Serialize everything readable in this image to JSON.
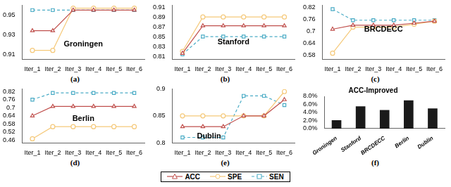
{
  "chart_data": [
    {
      "type": "line",
      "title": "Groningen",
      "annotation": "(a)",
      "legend": "bottom",
      "categories": [
        "Iter_1",
        "Iter_2",
        "Iter_3",
        "Iter_4",
        "Iter_5",
        "Iter_6"
      ],
      "ylim": [
        0.905,
        0.96
      ],
      "yticks": [
        0.91,
        0.93,
        0.95
      ],
      "grid": false,
      "series": [
        {
          "name": "ACC",
          "color": "#c0504d",
          "marker": "triangle",
          "line_style": "solid",
          "values": [
            0.934,
            0.934,
            0.955,
            0.955,
            0.955,
            0.955
          ]
        },
        {
          "name": "SPE",
          "color": "#f5c97a",
          "marker": "circle",
          "line_style": "solid",
          "values": [
            0.914,
            0.914,
            0.957,
            0.957,
            0.957,
            0.957
          ]
        },
        {
          "name": "SEN",
          "color": "#4bacc6",
          "marker": "square",
          "line_style": "dashed",
          "values": [
            0.955,
            0.955,
            0.955,
            0.955,
            0.955,
            0.955
          ]
        }
      ]
    },
    {
      "type": "line",
      "title": "Stanford",
      "annotation": "(b)",
      "categories": [
        "Iter_1",
        "Iter_2",
        "Iter_3",
        "Iter_4",
        "Iter_5",
        "Iter_6"
      ],
      "ylim": [
        0.805,
        0.915
      ],
      "yticks": [
        0.81,
        0.83,
        0.85,
        0.87,
        0.89,
        0.91
      ],
      "grid": false,
      "series": [
        {
          "name": "ACC",
          "color": "#c0504d",
          "marker": "triangle",
          "line_style": "solid",
          "values": [
            0.817,
            0.873,
            0.873,
            0.873,
            0.873,
            0.873
          ]
        },
        {
          "name": "SPE",
          "color": "#f5c97a",
          "marker": "circle",
          "line_style": "solid",
          "values": [
            0.821,
            0.891,
            0.891,
            0.891,
            0.891,
            0.891
          ]
        },
        {
          "name": "SEN",
          "color": "#4bacc6",
          "marker": "square",
          "line_style": "dashed",
          "values": [
            0.815,
            0.851,
            0.851,
            0.851,
            0.851,
            0.851
          ]
        }
      ]
    },
    {
      "type": "line",
      "title": "BRCDECC",
      "annotation": "(c)",
      "categories": [
        "Iter_1",
        "Iter_2",
        "Iter_3",
        "Iter_4",
        "Iter_5",
        "Iter_6"
      ],
      "ylim": [
        0.56,
        0.83
      ],
      "yticks": [
        0.58,
        0.64,
        0.7,
        0.76,
        0.82
      ],
      "grid": false,
      "series": [
        {
          "name": "ACC",
          "color": "#c0504d",
          "marker": "triangle",
          "line_style": "solid",
          "values": [
            0.71,
            0.73,
            0.73,
            0.73,
            0.74,
            0.75
          ]
        },
        {
          "name": "SPE",
          "color": "#f5c97a",
          "marker": "circle",
          "line_style": "solid",
          "values": [
            0.59,
            0.72,
            0.72,
            0.72,
            0.735,
            0.75
          ]
        },
        {
          "name": "SEN",
          "color": "#4bacc6",
          "marker": "square",
          "line_style": "dashed",
          "values": [
            0.81,
            0.755,
            0.755,
            0.755,
            0.755,
            0.755
          ]
        }
      ]
    },
    {
      "type": "line",
      "title": "Berlin",
      "annotation": "(d)",
      "categories": [
        "Iter_1",
        "Iter_2",
        "Iter_3",
        "Iter_4",
        "Iter_5",
        "Iter_6"
      ],
      "ylim": [
        0.44,
        0.84
      ],
      "yticks": [
        0.46,
        0.52,
        0.58,
        0.64,
        0.7,
        0.76,
        0.82
      ],
      "grid": false,
      "series": [
        {
          "name": "ACC",
          "color": "#c0504d",
          "marker": "triangle",
          "line_style": "solid",
          "values": [
            0.64,
            0.71,
            0.71,
            0.71,
            0.71,
            0.71
          ]
        },
        {
          "name": "SPE",
          "color": "#f5c97a",
          "marker": "circle",
          "line_style": "solid",
          "values": [
            0.47,
            0.56,
            0.56,
            0.56,
            0.56,
            0.56
          ]
        },
        {
          "name": "SEN",
          "color": "#4bacc6",
          "marker": "square",
          "line_style": "dashed",
          "values": [
            0.76,
            0.81,
            0.81,
            0.81,
            0.81,
            0.81
          ]
        }
      ]
    },
    {
      "type": "line",
      "title": "Dublin",
      "annotation": "(e)",
      "categories": [
        "Iter_1",
        "Iter_2",
        "Iter_3",
        "Iter_4",
        "Iter_5",
        "Iter_6"
      ],
      "ylim": [
        0.8,
        0.9
      ],
      "yticks": [
        0.8,
        0.85,
        0.9
      ],
      "grid": false,
      "series": [
        {
          "name": "ACC",
          "color": "#c0504d",
          "marker": "triangle",
          "line_style": "solid",
          "values": [
            0.83,
            0.83,
            0.83,
            0.85,
            0.85,
            0.88
          ]
        },
        {
          "name": "SPE",
          "color": "#f5c97a",
          "marker": "circle",
          "line_style": "solid",
          "values": [
            0.85,
            0.85,
            0.85,
            0.85,
            0.85,
            0.895
          ]
        },
        {
          "name": "SEN",
          "color": "#4bacc6",
          "marker": "square",
          "line_style": "dashed",
          "values": [
            0.81,
            0.81,
            0.81,
            0.887,
            0.887,
            0.87
          ]
        }
      ]
    },
    {
      "type": "bar",
      "title": "ACC-Improved",
      "annotation": "(f)",
      "categories": [
        "Groningen",
        "Stanford",
        "BRCDECC",
        "Berlin",
        "Dublin"
      ],
      "values": [
        2.1,
        5.5,
        4.6,
        7.0,
        5.0
      ],
      "color": "#1a1a1a",
      "ylim": [
        0,
        8
      ],
      "yticks": [
        {
          "value": 0,
          "label": "0.0%"
        },
        {
          "value": 2,
          "label": "2.0%"
        },
        {
          "value": 4,
          "label": "4.0%"
        },
        {
          "value": 6,
          "label": "6.0%"
        },
        {
          "value": 8,
          "label": "8.0%"
        }
      ],
      "grid": false
    }
  ]
}
